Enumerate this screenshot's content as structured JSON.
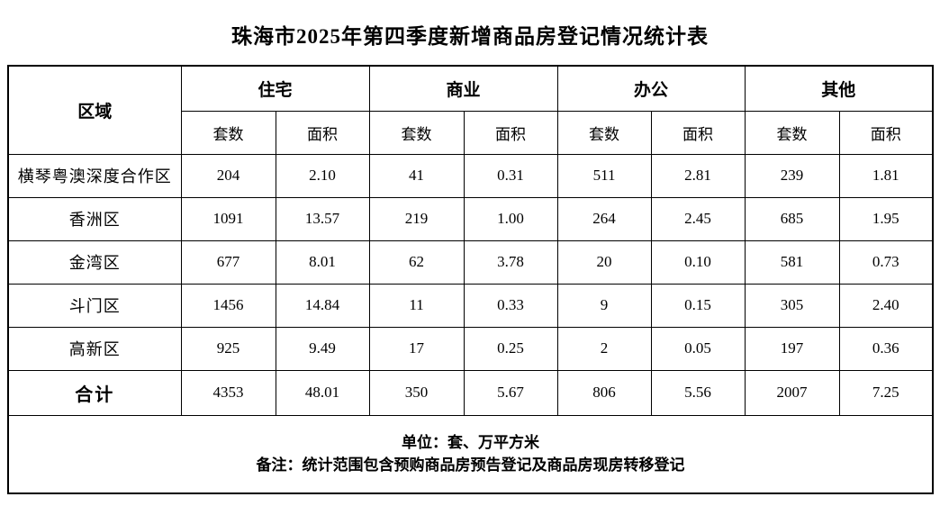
{
  "title": "珠海市2025年第四季度新增商品房登记情况统计表",
  "table": {
    "region_header": "区域",
    "groups": [
      {
        "label": "住宅"
      },
      {
        "label": "商业"
      },
      {
        "label": "办公"
      },
      {
        "label": "其他"
      }
    ],
    "sub_headers": {
      "units": "套数",
      "area": "面积"
    },
    "rows": [
      {
        "region": "横琴粤澳深度合作区",
        "values": [
          "204",
          "2.10",
          "41",
          "0.31",
          "511",
          "2.81",
          "239",
          "1.81"
        ]
      },
      {
        "region": "香洲区",
        "values": [
          "1091",
          "13.57",
          "219",
          "1.00",
          "264",
          "2.45",
          "685",
          "1.95"
        ]
      },
      {
        "region": "金湾区",
        "values": [
          "677",
          "8.01",
          "62",
          "3.78",
          "20",
          "0.10",
          "581",
          "0.73"
        ]
      },
      {
        "region": "斗门区",
        "values": [
          "1456",
          "14.84",
          "11",
          "0.33",
          "9",
          "0.15",
          "305",
          "2.40"
        ]
      },
      {
        "region": "高新区",
        "values": [
          "925",
          "9.49",
          "17",
          "0.25",
          "2",
          "0.05",
          "197",
          "0.36"
        ]
      }
    ],
    "total_row": {
      "region": "合计",
      "values": [
        "4353",
        "48.01",
        "350",
        "5.67",
        "806",
        "5.56",
        "2007",
        "7.25"
      ]
    },
    "footnotes": [
      "单位：套、万平方米",
      "备注：统计范围包含预购商品房预告登记及商品房现房转移登记"
    ]
  }
}
